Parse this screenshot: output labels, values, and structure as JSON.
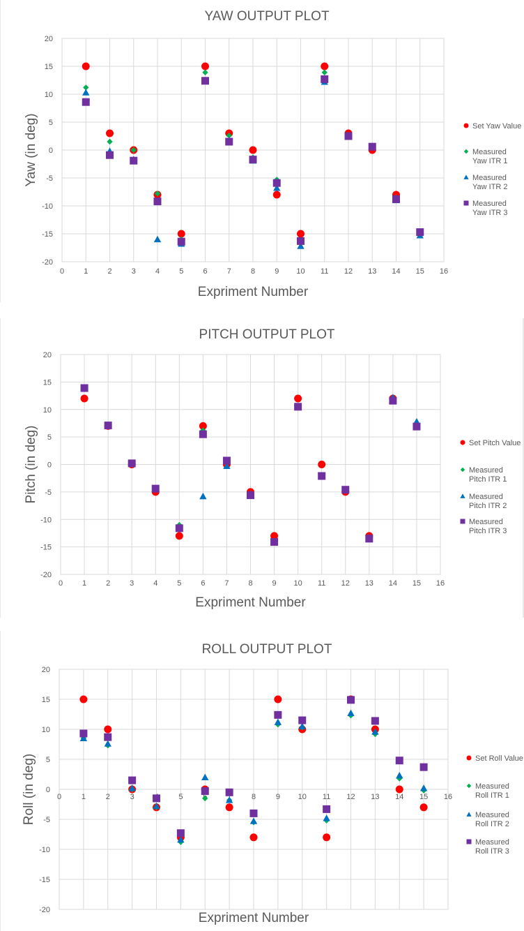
{
  "chart_data": [
    {
      "type": "scatter",
      "title": "YAW OUTPUT PLOT",
      "xlabel": "Expriment Number",
      "ylabel": "Yaw (in deg)",
      "xlim": [
        0,
        16
      ],
      "ylim": [
        -20,
        20
      ],
      "x_ticks": [
        "0",
        "1",
        "2",
        "3",
        "4",
        "5",
        "6",
        "7",
        "8",
        "9",
        "10",
        "11",
        "12",
        "13",
        "14",
        "15",
        "16"
      ],
      "y_ticks": [
        "20",
        "15",
        "10",
        "5",
        "0",
        "-5",
        "-10",
        "-15",
        "-20"
      ],
      "grid": true,
      "legend_position": "right",
      "x": [
        1,
        2,
        3,
        4,
        5,
        6,
        7,
        8,
        9,
        10,
        11,
        12,
        13,
        14,
        15
      ],
      "series": [
        {
          "name": [
            "Set Yaw Value"
          ],
          "marker": "circle",
          "color": "#ff0000",
          "values": [
            15,
            3,
            0,
            -8,
            -15,
            15,
            3,
            0,
            -8,
            -15,
            15,
            3,
            0,
            -8,
            null
          ]
        },
        {
          "name": [
            "Measured",
            "Yaw ITR 1"
          ],
          "marker": "diamond",
          "color": "#00b050",
          "values": [
            11.2,
            1.5,
            0,
            -7.8,
            -16,
            13.9,
            2.6,
            -1.3,
            -5.3,
            -16.5,
            13.9,
            2.7,
            0.4,
            -8.5,
            -14.8
          ]
        },
        {
          "name": [
            "Measured",
            "Yaw ITR 2"
          ],
          "marker": "triangle",
          "color": "#0070c0",
          "values": [
            10.3,
            -0.2,
            -1.7,
            -16,
            -16.8,
            12.5,
            1.7,
            -1.9,
            -6.8,
            -17.2,
            12.2,
            2.4,
            0.7,
            -9,
            -15.3
          ]
        },
        {
          "name": [
            "Measured",
            "Yaw ITR 3"
          ],
          "marker": "square",
          "color": "#7030a0",
          "values": [
            8.6,
            -0.9,
            -1.9,
            -9.2,
            -16.4,
            12.4,
            1.5,
            -1.7,
            -5.9,
            -16.3,
            12.7,
            2.5,
            0.6,
            -8.8,
            -14.7
          ]
        }
      ]
    },
    {
      "type": "scatter",
      "title": "PITCH OUTPUT PLOT",
      "xlabel": "Expriment Number",
      "ylabel": "Pitch (in deg)",
      "xlim": [
        0,
        16
      ],
      "ylim": [
        -20,
        20
      ],
      "x_ticks": [
        "0",
        "1",
        "2",
        "3",
        "4",
        "5",
        "6",
        "7",
        "8",
        "9",
        "10",
        "11",
        "12",
        "13",
        "14",
        "15",
        "16"
      ],
      "y_ticks": [
        "20",
        "15",
        "10",
        "5",
        "0",
        "-5",
        "-10",
        "-15",
        "-20"
      ],
      "grid": true,
      "legend_position": "right",
      "x": [
        1,
        2,
        3,
        4,
        5,
        6,
        7,
        8,
        9,
        10,
        11,
        12,
        13,
        14,
        15
      ],
      "series": [
        {
          "name": [
            "Set Pitch Value"
          ],
          "marker": "circle",
          "color": "#ff0000",
          "values": [
            12,
            7,
            0,
            -5,
            -13,
            7,
            0,
            -5,
            -13,
            12,
            0,
            -5,
            -13,
            12,
            7
          ]
        },
        {
          "name": [
            "Measured",
            "Pitch ITR 1"
          ],
          "marker": "diamond",
          "color": "#00b050",
          "values": [
            13.9,
            7.1,
            0.2,
            -4.6,
            -11,
            6.2,
            0.3,
            -5.3,
            -14,
            10.6,
            -2,
            -4.7,
            -13.5,
            12,
            7.3
          ]
        },
        {
          "name": [
            "Measured",
            "Pitch ITR 2"
          ],
          "marker": "triangle",
          "color": "#0070c0",
          "values": [
            13.9,
            7.2,
            0.1,
            -4.4,
            -11.7,
            -5.8,
            -0.3,
            -5.4,
            -14.2,
            10.6,
            -2,
            -4.6,
            -13.3,
            12.2,
            7.8
          ]
        },
        {
          "name": [
            "Measured",
            "Pitch ITR 3"
          ],
          "marker": "square",
          "color": "#7030a0",
          "values": [
            13.9,
            7.1,
            0.2,
            -4.4,
            -11.6,
            5.5,
            0.7,
            -5.6,
            -14.1,
            10.5,
            -2.1,
            -4.6,
            -13.5,
            11.6,
            6.9
          ]
        }
      ]
    },
    {
      "type": "scatter",
      "title": "ROLL OUTPUT PLOT",
      "xlabel": "Expriment Number",
      "ylabel": "Roll (in deg)",
      "xlim": [
        0,
        16
      ],
      "ylim": [
        -20,
        20
      ],
      "x_ticks": [
        "0",
        "1",
        "2",
        "3",
        "4",
        "5",
        "6",
        "7",
        "8",
        "9",
        "10",
        "11",
        "12",
        "13",
        "14",
        "15",
        "16"
      ],
      "y_ticks": [
        "20",
        "15",
        "10",
        "5",
        "0",
        "-5",
        "-10",
        "-15",
        "-20"
      ],
      "grid": true,
      "legend_position": "right",
      "x": [
        1,
        2,
        3,
        4,
        5,
        6,
        7,
        8,
        9,
        10,
        11,
        12,
        13,
        14,
        15
      ],
      "series": [
        {
          "name": [
            "Set Roll Value"
          ],
          "marker": "circle",
          "color": "#ff0000",
          "values": [
            15,
            10,
            0,
            -3,
            -8,
            0,
            -3,
            -8,
            15,
            10,
            -8,
            15,
            10,
            0,
            -3
          ]
        },
        {
          "name": [
            "Measured",
            "Roll ITR 1"
          ],
          "marker": "diamond",
          "color": "#00b050",
          "values": [
            8.5,
            7.3,
            0,
            -3,
            -8.8,
            -1.5,
            -1.8,
            -5.5,
            10.8,
            10.3,
            -5.2,
            12.3,
            9.2,
            1.8,
            -0.2
          ]
        },
        {
          "name": [
            "Measured",
            "Roll ITR 2"
          ],
          "marker": "triangle",
          "color": "#0070c0",
          "values": [
            8.5,
            7.6,
            0.2,
            -2.8,
            -8.4,
            2,
            -1.8,
            -5.3,
            11.2,
            10.5,
            -4.8,
            12.7,
            9.6,
            2.3,
            0.2
          ]
        },
        {
          "name": [
            "Measured",
            "Roll ITR 3"
          ],
          "marker": "square",
          "color": "#7030a0",
          "values": [
            9.3,
            8.7,
            1.5,
            -1.5,
            -7.3,
            -0.3,
            -0.5,
            -4,
            12.4,
            11.5,
            -3.3,
            14.9,
            11.4,
            4.8,
            3.7
          ]
        }
      ]
    }
  ]
}
